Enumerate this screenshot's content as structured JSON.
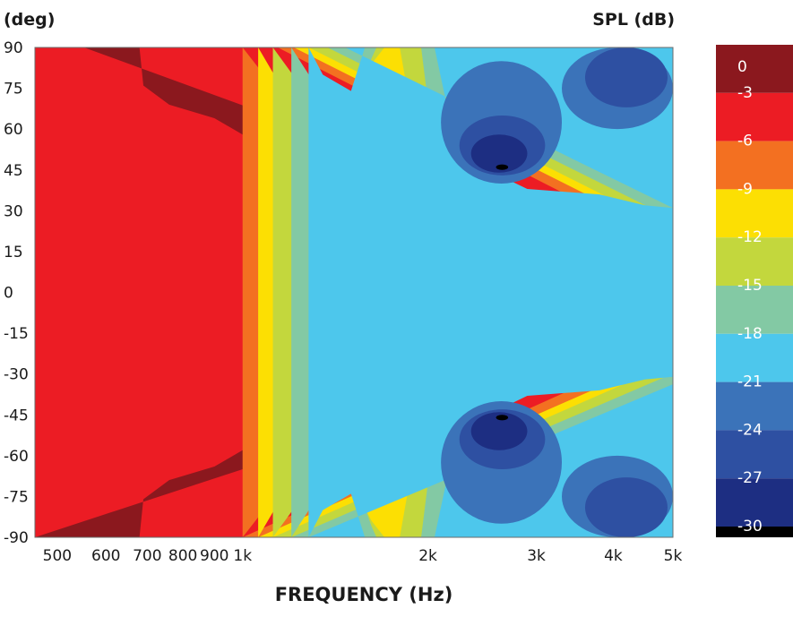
{
  "chart_data": {
    "type": "heatmap",
    "title": "",
    "y_unit": "(deg)",
    "colorbar_title": "SPL (dB)",
    "xlabel": "FREQUENCY (Hz)",
    "ylabel": "",
    "x_scale": "log",
    "xlim": [
      460,
      5000
    ],
    "ylim": [
      -90,
      90
    ],
    "x_ticks": [
      {
        "value": 500,
        "label": "500"
      },
      {
        "value": 600,
        "label": "600"
      },
      {
        "value": 700,
        "label": "700"
      },
      {
        "value": 800,
        "label": "800"
      },
      {
        "value": 900,
        "label": "900"
      },
      {
        "value": 1000,
        "label": "1k"
      },
      {
        "value": 2000,
        "label": "2k"
      },
      {
        "value": 3000,
        "label": "3k"
      },
      {
        "value": 4000,
        "label": "4k"
      },
      {
        "value": 5000,
        "label": "5k"
      }
    ],
    "y_ticks": [
      {
        "value": 90,
        "label": "90"
      },
      {
        "value": 75,
        "label": "75"
      },
      {
        "value": 60,
        "label": "60"
      },
      {
        "value": 45,
        "label": "45"
      },
      {
        "value": 30,
        "label": "30"
      },
      {
        "value": 15,
        "label": "15"
      },
      {
        "value": 0,
        "label": "0"
      },
      {
        "value": -15,
        "label": "-15"
      },
      {
        "value": -30,
        "label": "-30"
      },
      {
        "value": -45,
        "label": "-45"
      },
      {
        "value": -60,
        "label": "-60"
      },
      {
        "value": -75,
        "label": "-75"
      },
      {
        "value": -90,
        "label": "-90"
      }
    ],
    "colorbar": [
      {
        "label": "0",
        "color": "#8b181e"
      },
      {
        "label": "-3",
        "color": "#ec1c24"
      },
      {
        "label": "-6",
        "color": "#f37021"
      },
      {
        "label": "-9",
        "color": "#fcdf03"
      },
      {
        "label": "-12",
        "color": "#c3d73d"
      },
      {
        "label": "-15",
        "color": "#83c9a4"
      },
      {
        "label": "-18",
        "color": "#4dc7ec"
      },
      {
        "label": "-21",
        "color": "#3b73b9"
      },
      {
        "label": "-24",
        "color": "#2e50a2"
      },
      {
        "label": "-27",
        "color": "#1d2e82"
      },
      {
        "label": "-30",
        "color": "#000000"
      }
    ],
    "contours": [
      {
        "level": -3,
        "half_width_deg": [
          [
            460,
            90
          ],
          [
            680,
            90
          ],
          [
            690,
            76
          ],
          [
            760,
            69
          ],
          [
            900,
            64
          ],
          [
            1000,
            58
          ],
          [
            1120,
            50
          ],
          [
            1300,
            40
          ],
          [
            1550,
            30
          ],
          [
            1800,
            24
          ],
          [
            2100,
            22
          ],
          [
            2500,
            18
          ],
          [
            2900,
            15
          ],
          [
            3500,
            13
          ],
          [
            4300,
            12
          ],
          [
            5000,
            11
          ]
        ]
      },
      {
        "level": -6,
        "half_width_deg": [
          [
            1000,
            90
          ],
          [
            1100,
            78
          ],
          [
            1250,
            55
          ],
          [
            1450,
            40
          ],
          [
            1650,
            33
          ],
          [
            1750,
            42
          ],
          [
            1850,
            34
          ],
          [
            2100,
            28
          ],
          [
            2500,
            23
          ],
          [
            3000,
            20
          ],
          [
            3800,
            18
          ],
          [
            5000,
            16
          ]
        ]
      },
      {
        "level": -9,
        "half_width_deg": [
          [
            1060,
            90
          ],
          [
            1180,
            72
          ],
          [
            1350,
            55
          ],
          [
            1600,
            44
          ],
          [
            1700,
            55
          ],
          [
            1850,
            43
          ],
          [
            2150,
            33
          ],
          [
            2600,
            27
          ],
          [
            3200,
            24
          ],
          [
            4000,
            22
          ],
          [
            5000,
            20
          ]
        ]
      },
      {
        "level": -12,
        "half_width_deg": [
          [
            1120,
            90
          ],
          [
            1280,
            72
          ],
          [
            1450,
            63
          ],
          [
            1620,
            84
          ],
          [
            1700,
            90
          ],
          [
            1800,
            90
          ],
          [
            1900,
            60
          ],
          [
            2100,
            43
          ],
          [
            2500,
            33
          ],
          [
            3200,
            28
          ],
          [
            4200,
            25
          ],
          [
            5000,
            23
          ]
        ]
      },
      {
        "level": -15,
        "half_width_deg": [
          [
            1200,
            90
          ],
          [
            1350,
            72
          ],
          [
            1520,
            68
          ],
          [
            1620,
            86
          ],
          [
            1650,
            90
          ],
          [
            1950,
            90
          ],
          [
            2000,
            70
          ],
          [
            2250,
            52
          ],
          [
            2700,
            38
          ],
          [
            3600,
            32
          ],
          [
            4500,
            28
          ],
          [
            5000,
            27
          ]
        ]
      },
      {
        "level": -18,
        "half_width_deg": [
          [
            1280,
            90
          ],
          [
            1350,
            80
          ],
          [
            1500,
            74
          ],
          [
            1580,
            90
          ],
          [
            2050,
            90
          ],
          [
            2150,
            68
          ],
          [
            2450,
            46
          ],
          [
            2900,
            38
          ],
          [
            3800,
            36
          ],
          [
            4500,
            32
          ],
          [
            5000,
            31
          ]
        ]
      }
    ],
    "minima": [
      {
        "level": -21,
        "freq_range": [
          2100,
          3300
        ],
        "deg_range": [
          40,
          85
        ]
      },
      {
        "level": -24,
        "freq_range": [
          2250,
          3100
        ],
        "deg_range": [
          43,
          65
        ]
      },
      {
        "level": -27,
        "freq_range": [
          2350,
          2900
        ],
        "deg_range": [
          44,
          58
        ]
      },
      {
        "level": -30,
        "freq_range": [
          2580,
          2700
        ],
        "deg_range": [
          45,
          47
        ]
      },
      {
        "level": -21,
        "freq_range": [
          3300,
          5000
        ],
        "deg_range": [
          60,
          90
        ]
      },
      {
        "level": -24,
        "freq_range": [
          3600,
          4900
        ],
        "deg_range": [
          68,
          90
        ]
      }
    ]
  }
}
